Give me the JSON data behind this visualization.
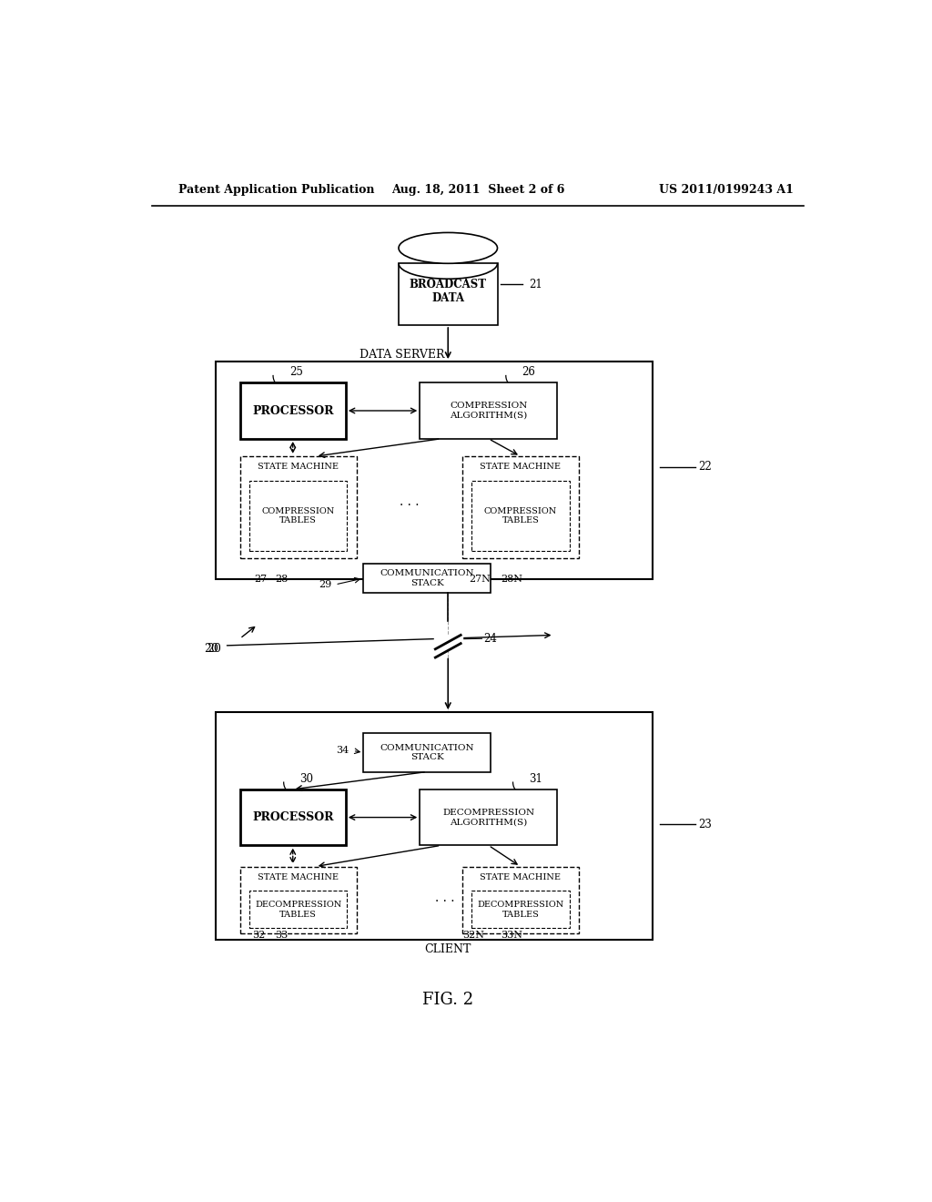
{
  "bg_color": "#ffffff",
  "header_left": "Patent Application Publication",
  "header_mid": "Aug. 18, 2011  Sheet 2 of 6",
  "header_right": "US 2011/0199243 A1",
  "fig_label": "FIG. 2",
  "system_label": "20",
  "broadcast_data_label": "BROADCAST\nDATA",
  "broadcast_ref": "21",
  "data_server_label": "DATA SERVER",
  "data_server_ref": "22",
  "processor_top_label": "PROCESSOR",
  "processor_top_ref": "25",
  "compression_alg_label": "COMPRESSION\nALGORITHM(S)",
  "compression_alg_ref": "26",
  "state_machine_top_left_label": "STATE MACHINE",
  "compression_tables_top_left_label": "COMPRESSION\nTABLES",
  "state_machine_top_right_label": "STATE MACHINE",
  "compression_tables_top_right_label": "COMPRESSION\nTABLES",
  "comm_stack_top_label": "COMMUNICATION\nSTACK",
  "comm_stack_top_ref": "29",
  "ref_27": "27",
  "ref_28": "28",
  "ref_27N": "27N",
  "ref_28N": "28N",
  "network_ref": "24",
  "client_label": "CLIENT",
  "client_ref": "23",
  "comm_stack_bottom_label": "COMMUNICATION\nSTACK",
  "comm_stack_bottom_ref": "34",
  "processor_bottom_label": "PROCESSOR",
  "processor_bottom_ref": "30",
  "decompression_alg_label": "DECOMPRESSION\nALGORITHM(S)",
  "decompression_alg_ref": "31",
  "state_machine_bot_left_label": "STATE MACHINE",
  "decompression_tables_left_label": "DECOMPRESSION\nTABLES",
  "state_machine_bot_right_label": "STATE MACHINE",
  "decompression_tables_right_label": "DECOMPRESSION\nTABLES",
  "ref_32": "32",
  "ref_33": "33",
  "ref_32N": "32N",
  "ref_33N": "33N"
}
